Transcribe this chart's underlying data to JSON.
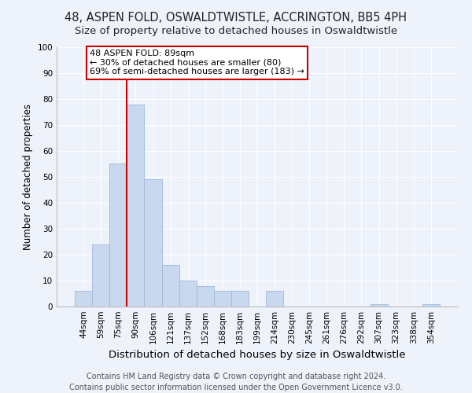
{
  "title": "48, ASPEN FOLD, OSWALDTWISTLE, ACCRINGTON, BB5 4PH",
  "subtitle": "Size of property relative to detached houses in Oswaldtwistle",
  "xlabel": "Distribution of detached houses by size in Oswaldtwistle",
  "ylabel": "Number of detached properties",
  "bar_labels": [
    "44sqm",
    "59sqm",
    "75sqm",
    "90sqm",
    "106sqm",
    "121sqm",
    "137sqm",
    "152sqm",
    "168sqm",
    "183sqm",
    "199sqm",
    "214sqm",
    "230sqm",
    "245sqm",
    "261sqm",
    "276sqm",
    "292sqm",
    "307sqm",
    "323sqm",
    "338sqm",
    "354sqm"
  ],
  "bar_values": [
    6,
    24,
    55,
    78,
    49,
    16,
    10,
    8,
    6,
    6,
    0,
    6,
    0,
    0,
    0,
    0,
    0,
    1,
    0,
    0,
    1
  ],
  "bar_color": "#c8d8ee",
  "bar_edge_color": "#a0b8d8",
  "vline_index": 3,
  "vline_color": "#cc0000",
  "ylim": [
    0,
    100
  ],
  "yticks": [
    0,
    10,
    20,
    30,
    40,
    50,
    60,
    70,
    80,
    90,
    100
  ],
  "annotation_text": "48 ASPEN FOLD: 89sqm\n← 30% of detached houses are smaller (80)\n69% of semi-detached houses are larger (183) →",
  "annotation_box_facecolor": "#ffffff",
  "annotation_box_edgecolor": "#cc0000",
  "footer_line1": "Contains HM Land Registry data © Crown copyright and database right 2024.",
  "footer_line2": "Contains public sector information licensed under the Open Government Licence v3.0.",
  "background_color": "#eef2fa",
  "grid_color": "#ffffff",
  "title_fontsize": 10.5,
  "subtitle_fontsize": 9.5,
  "xlabel_fontsize": 9.5,
  "ylabel_fontsize": 8.5,
  "tick_fontsize": 7.5,
  "annot_fontsize": 8.0,
  "footer_fontsize": 7.0
}
